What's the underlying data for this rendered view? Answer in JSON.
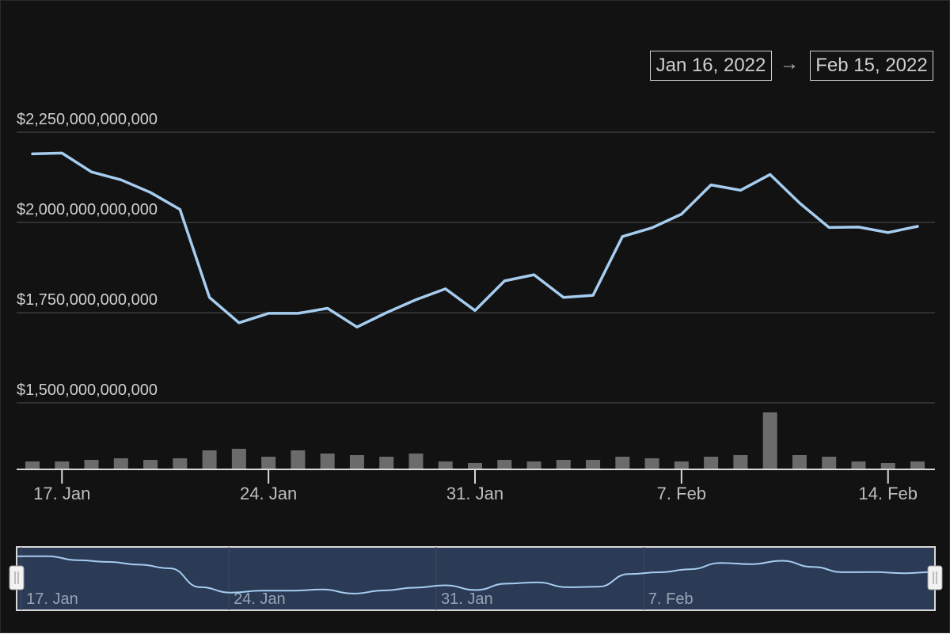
{
  "range_selector": {
    "from": "Jan 16, 2022",
    "separator": "→",
    "to": "Feb 15, 2022"
  },
  "colors": {
    "background": "#121212",
    "line": "#a6cdf0",
    "volume": "#6b6b6b",
    "grid": "#3a3a3a",
    "navigator_fill": "#2b3a55",
    "text": "#cfcfcf"
  },
  "chart_data": {
    "type": "line",
    "title": "",
    "xlabel": "",
    "ylabel": "",
    "x": [
      "2022-01-16",
      "2022-01-17",
      "2022-01-18",
      "2022-01-19",
      "2022-01-20",
      "2022-01-21",
      "2022-01-22",
      "2022-01-23",
      "2022-01-24",
      "2022-01-25",
      "2022-01-26",
      "2022-01-27",
      "2022-01-28",
      "2022-01-29",
      "2022-01-30",
      "2022-01-31",
      "2022-02-01",
      "2022-02-02",
      "2022-02-03",
      "2022-02-04",
      "2022-02-05",
      "2022-02-06",
      "2022-02-07",
      "2022-02-08",
      "2022-02-09",
      "2022-02-10",
      "2022-02-11",
      "2022-02-12",
      "2022-02-13",
      "2022-02-14",
      "2022-02-15"
    ],
    "series": [
      {
        "values": [
          2190000000000,
          2192000000000,
          2140000000000,
          2118000000000,
          2083000000000,
          2036000000000,
          1792000000000,
          1722000000000,
          1748000000000,
          1748000000000,
          1762000000000,
          1710000000000,
          1750000000000,
          1786000000000,
          1816000000000,
          1756000000000,
          1838000000000,
          1855000000000,
          1792000000000,
          1798000000000,
          1961000000000,
          1985000000000,
          2023000000000,
          2104000000000,
          2089000000000,
          2133000000000,
          2054000000000,
          1986000000000,
          1987000000000,
          1972000000000,
          1989000000000
        ]
      },
      {
        "type": "bar",
        "values": [
          10,
          10,
          12,
          14,
          12,
          14,
          24,
          26,
          16,
          24,
          20,
          18,
          16,
          20,
          10,
          8,
          12,
          10,
          12,
          12,
          16,
          14,
          10,
          16,
          18,
          72,
          18,
          16,
          10,
          8,
          10
        ]
      }
    ],
    "ylim": [
      1500000000000,
      2250000000000
    ],
    "yticks": [
      {
        "value": 1500000000000,
        "label": "$1,500,000,000,000"
      },
      {
        "value": 1750000000000,
        "label": "$1,750,000,000,000"
      },
      {
        "value": 2000000000000,
        "label": "$2,000,000,000,000"
      },
      {
        "value": 2250000000000,
        "label": "$2,250,000,000,000"
      }
    ],
    "xticks": [
      {
        "x": "2022-01-17",
        "label": "17. Jan"
      },
      {
        "x": "2022-01-24",
        "label": "24. Jan"
      },
      {
        "x": "2022-01-31",
        "label": "31. Jan"
      },
      {
        "x": "2022-02-07",
        "label": "7. Feb"
      },
      {
        "x": "2022-02-14",
        "label": "14. Feb"
      }
    ],
    "grid": true,
    "legend": "none",
    "navigator": {
      "xticks": [
        {
          "x": "2022-01-17",
          "label": "17. Jan"
        },
        {
          "x": "2022-01-24",
          "label": "24. Jan"
        },
        {
          "x": "2022-01-31",
          "label": "31. Jan"
        },
        {
          "x": "2022-02-07",
          "label": "7. Feb"
        }
      ]
    }
  }
}
